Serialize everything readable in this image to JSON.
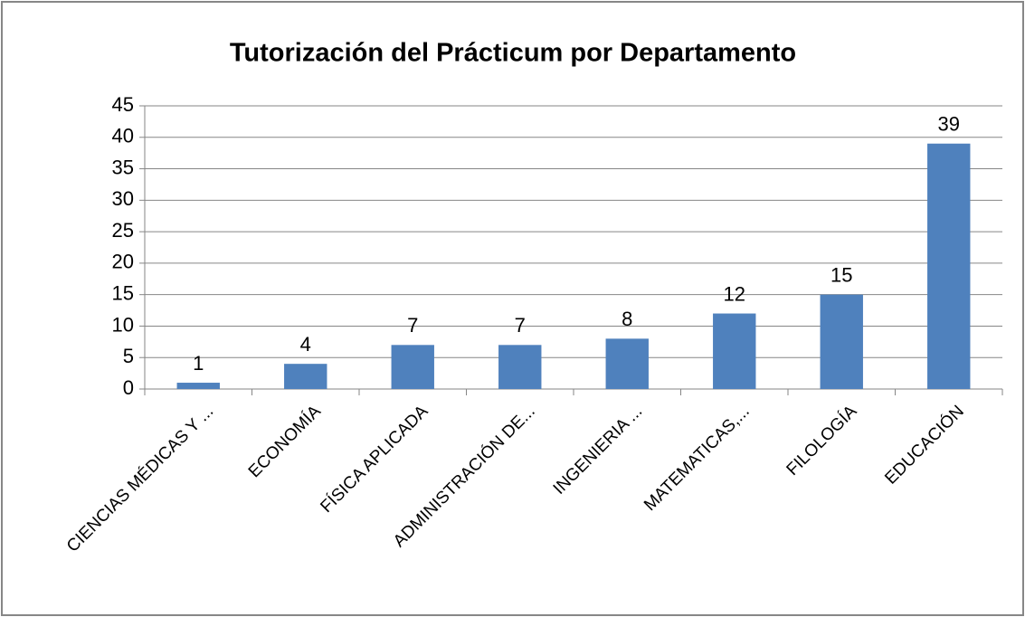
{
  "chart_data": {
    "type": "bar",
    "title": "Tutorización del Prácticum por Departamento",
    "categories": [
      "CIENCIAS MÉDICAS Y ...",
      "ECONOMÍA",
      "FÍSICA APLICADA",
      "ADMINISTRACIÓN DE...",
      "INGENIERIA ...",
      "MATEMATICAS,...",
      "FILOLOGÍA",
      "EDUCACIÓN"
    ],
    "values": [
      1,
      4,
      7,
      7,
      8,
      12,
      15,
      39
    ],
    "color": "#4f81bd",
    "ylim": [
      0,
      45
    ],
    "yticks": [
      0,
      5,
      10,
      15,
      20,
      25,
      30,
      35,
      40,
      45
    ],
    "grid": true
  }
}
